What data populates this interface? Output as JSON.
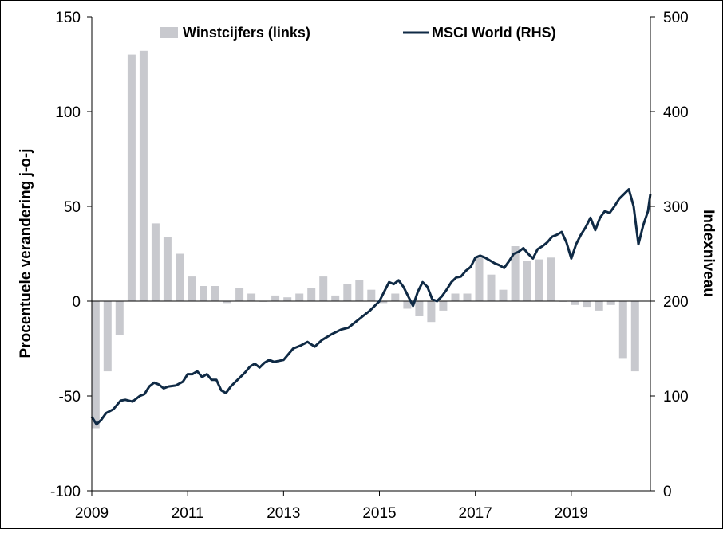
{
  "chart_data": {
    "type": "bar+line",
    "title": "",
    "ylabel_left": "Procentuele verandering j-o-j",
    "ylabel_right": "Indexniveau",
    "ylim_left": [
      -100,
      150
    ],
    "ylim_right": [
      0,
      500
    ],
    "yticks_left": [
      "150",
      "100",
      "50",
      "0",
      "-50",
      "-100"
    ],
    "yticks_right": [
      "500",
      "400",
      "300",
      "200",
      "100",
      "0"
    ],
    "xticks": [
      "2009",
      "2011",
      "2013",
      "2015",
      "2017",
      "2019"
    ],
    "xlim": [
      2009.0,
      2020.65
    ],
    "legend": {
      "placement": "top",
      "bars_label": "Winstcijfers (links)",
      "line_label": "MSCI World (RHS)"
    },
    "colors": {
      "bars": "#c8c9ce",
      "line": "#0f2a45",
      "axis": "#000000"
    },
    "bar_series": {
      "name": "Winstcijfers (links)",
      "x": [
        2009.08,
        2009.33,
        2009.58,
        2009.83,
        2010.08,
        2010.33,
        2010.58,
        2010.83,
        2011.08,
        2011.33,
        2011.58,
        2011.83,
        2012.08,
        2012.33,
        2012.58,
        2012.83,
        2013.08,
        2013.33,
        2013.58,
        2013.83,
        2014.08,
        2014.33,
        2014.58,
        2014.83,
        2015.08,
        2015.33,
        2015.58,
        2015.83,
        2016.08,
        2016.33,
        2016.58,
        2016.83,
        2017.08,
        2017.33,
        2017.58,
        2017.83,
        2018.08,
        2018.33,
        2018.58,
        2018.83,
        2019.08,
        2019.33,
        2019.58,
        2019.83,
        2020.08,
        2020.33
      ],
      "values": [
        -67,
        -37,
        -18,
        130,
        132,
        41,
        34,
        25,
        13,
        8,
        8,
        -1,
        7,
        4,
        0,
        3,
        2,
        4,
        7,
        13,
        3,
        9,
        11,
        6,
        -1,
        4,
        -4,
        -8,
        -11,
        -5,
        4,
        4,
        23,
        14,
        6,
        29,
        21,
        22,
        23,
        0,
        -2,
        -3,
        -5,
        -2,
        -30,
        -37
      ]
    },
    "line_series": {
      "name": "MSCI World (RHS)",
      "x": [
        2009.0,
        2009.1,
        2009.2,
        2009.3,
        2009.45,
        2009.6,
        2009.7,
        2009.85,
        2010.0,
        2010.1,
        2010.2,
        2010.3,
        2010.4,
        2010.5,
        2010.6,
        2010.75,
        2010.9,
        2011.0,
        2011.1,
        2011.2,
        2011.3,
        2011.4,
        2011.5,
        2011.6,
        2011.7,
        2011.8,
        2011.9,
        2012.0,
        2012.1,
        2012.2,
        2012.3,
        2012.4,
        2012.5,
        2012.6,
        2012.7,
        2012.8,
        2013.0,
        2013.2,
        2013.35,
        2013.5,
        2013.65,
        2013.8,
        2014.0,
        2014.2,
        2014.35,
        2014.5,
        2014.65,
        2014.8,
        2015.0,
        2015.1,
        2015.2,
        2015.3,
        2015.4,
        2015.5,
        2015.6,
        2015.7,
        2015.8,
        2015.9,
        2016.0,
        2016.1,
        2016.2,
        2016.3,
        2016.4,
        2016.5,
        2016.6,
        2016.7,
        2016.8,
        2016.9,
        2017.0,
        2017.1,
        2017.2,
        2017.3,
        2017.4,
        2017.5,
        2017.6,
        2017.7,
        2017.8,
        2017.9,
        2018.0,
        2018.1,
        2018.2,
        2018.3,
        2018.4,
        2018.5,
        2018.6,
        2018.7,
        2018.8,
        2018.9,
        2019.0,
        2019.1,
        2019.2,
        2019.3,
        2019.4,
        2019.5,
        2019.6,
        2019.7,
        2019.8,
        2019.9,
        2020.0,
        2020.1,
        2020.2,
        2020.3,
        2020.4,
        2020.5,
        2020.6,
        2020.65
      ],
      "values": [
        78,
        70,
        75,
        82,
        86,
        95,
        96,
        94,
        100,
        102,
        110,
        114,
        112,
        108,
        110,
        111,
        115,
        123,
        123,
        126,
        120,
        123,
        117,
        117,
        106,
        103,
        110,
        115,
        120,
        125,
        131,
        134,
        130,
        135,
        138,
        136,
        138,
        150,
        153,
        157,
        152,
        159,
        165,
        170,
        172,
        178,
        184,
        190,
        200,
        210,
        220,
        218,
        222,
        215,
        205,
        195,
        210,
        220,
        215,
        202,
        200,
        205,
        212,
        220,
        225,
        226,
        232,
        236,
        246,
        248,
        246,
        243,
        240,
        238,
        235,
        242,
        250,
        252,
        256,
        250,
        245,
        255,
        258,
        262,
        268,
        270,
        273,
        262,
        245,
        260,
        270,
        278,
        288,
        275,
        288,
        295,
        293,
        300,
        308,
        313,
        318,
        300,
        260,
        280,
        295,
        313
      ]
    }
  }
}
